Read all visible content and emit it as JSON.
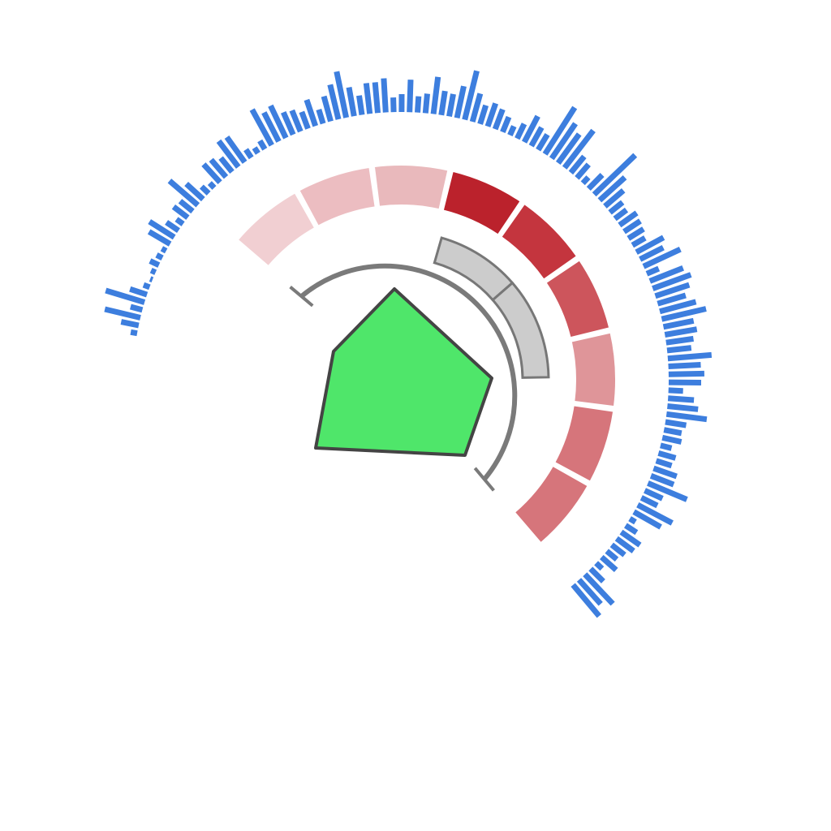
{
  "colors": {
    "background": "#ffffff",
    "ticks": "#3d7ede",
    "polygon_fill": "#4fe66a",
    "polygon_stroke": "#444444",
    "inner_track": "#7a7a7a",
    "inner_segment_fill": "#cccccc",
    "inner_segment_stroke": "#777777"
  },
  "outer_tick_ring": {
    "start_angle_deg": -80,
    "end_angle_deg": 140,
    "lengths": [
      8,
      22,
      45,
      15,
      50,
      22,
      8,
      3,
      6,
      12,
      8,
      6,
      30,
      36,
      18,
      10,
      22,
      20,
      46,
      28,
      12,
      8,
      30,
      28,
      22,
      40,
      38,
      12,
      8,
      12,
      50,
      40,
      44,
      30,
      28,
      22,
      34,
      18,
      32,
      44,
      58,
      36,
      24,
      38,
      38,
      42,
      18,
      22,
      40,
      20,
      24,
      46,
      30,
      28,
      40,
      62,
      36,
      24,
      30,
      26,
      20,
      12,
      20,
      36,
      26,
      22,
      68,
      52,
      44,
      58,
      26,
      22,
      10,
      24,
      70,
      42,
      30,
      20,
      18,
      26,
      24,
      22,
      18,
      38,
      32,
      50,
      16,
      44,
      50,
      44,
      36,
      46,
      56,
      38,
      40,
      34,
      30,
      54,
      40,
      44,
      40,
      18,
      32,
      38,
      50,
      26,
      22,
      24,
      14,
      22,
      20,
      30,
      30,
      52,
      24,
      22,
      48,
      38,
      8,
      16,
      28,
      26,
      20,
      16,
      24,
      10,
      22,
      50,
      40,
      50
    ]
  },
  "outer_segments": [
    {
      "value": 0.25,
      "color": "#f1cfd2"
    },
    {
      "value": 0.38,
      "color": "#ecbdc1"
    },
    {
      "value": 0.4,
      "color": "#e9b9bc"
    },
    {
      "value": 1.0,
      "color": "#bb222c"
    },
    {
      "value": 0.88,
      "color": "#c4353e"
    },
    {
      "value": 0.75,
      "color": "#cd555c"
    },
    {
      "value": 0.5,
      "color": "#df9599"
    },
    {
      "value": 0.65,
      "color": "#d6757b"
    },
    {
      "value": 0.65,
      "color": "#d6757b"
    }
  ],
  "inner_ring": {
    "track_start_deg": -50,
    "track_end_deg": 140,
    "segments": [
      {
        "start_deg": 16,
        "end_deg": 49
      },
      {
        "start_deg": 49,
        "end_deg": 89
      }
    ]
  },
  "polygon": {
    "points": [
      [
        486,
        356
      ],
      [
        606,
        466
      ],
      [
        573,
        561
      ],
      [
        389,
        552
      ],
      [
        411,
        433
      ]
    ]
  }
}
